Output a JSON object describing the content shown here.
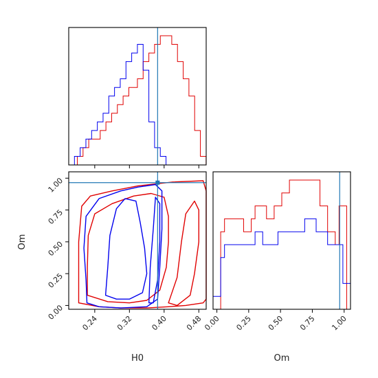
{
  "chart_data": {
    "type": "corner",
    "parameters": [
      "H0",
      "Om"
    ],
    "axis_labels": {
      "H0": "H0",
      "Om": "Om"
    },
    "ranges": {
      "H0": [
        0.18,
        0.497
      ],
      "Om": [
        -0.03,
        1.05
      ]
    },
    "ticks": {
      "H0": {
        "values": [
          0.24,
          0.32,
          0.4,
          0.48
        ],
        "labels": [
          "0.24",
          "0.32",
          "0.40",
          "0.48"
        ]
      },
      "Om": {
        "values": [
          0.0,
          0.25,
          0.5,
          0.75,
          1.0
        ],
        "labels": [
          "0.00",
          "0.25",
          "0.50",
          "0.75",
          "1.00"
        ]
      }
    },
    "truth": {
      "H0": 0.385,
      "Om": 0.965
    },
    "colors": {
      "red": "#e00000",
      "blue": "#0000ee",
      "truth": "#1f77b4"
    },
    "hist_H0": {
      "bins": [
        0.18,
        0.1866,
        0.1932,
        0.1998,
        0.2064,
        0.213,
        0.2196,
        0.2262,
        0.2328,
        0.2394,
        0.246,
        0.2526,
        0.2592,
        0.2658,
        0.2724,
        0.279,
        0.2856,
        0.2922,
        0.2988,
        0.3054,
        0.312,
        0.3186,
        0.3252,
        0.3318,
        0.3384,
        0.345,
        0.3516,
        0.3582,
        0.3648,
        0.3714,
        0.378,
        0.3846,
        0.3912,
        0.3978,
        0.4044,
        0.411,
        0.4176,
        0.4242,
        0.4308,
        0.4374,
        0.444,
        0.4506,
        0.4572,
        0.4638,
        0.4704,
        0.477,
        0.4836,
        0.4902,
        0.4968
      ],
      "series": [
        {
          "color": "red",
          "counts": [
            0,
            0,
            0,
            1,
            1,
            2,
            2,
            3,
            3,
            3,
            3,
            4,
            4,
            5,
            5,
            6,
            6,
            7,
            7,
            8,
            8,
            9,
            9,
            9,
            10,
            10,
            12,
            12,
            13,
            13,
            14,
            14,
            15,
            15,
            15,
            15,
            14,
            14,
            12,
            12,
            10,
            10,
            8,
            8,
            4,
            4,
            1,
            1
          ]
        },
        {
          "color": "blue",
          "counts": [
            0,
            0,
            1,
            1,
            2,
            2,
            3,
            3,
            4,
            4,
            5,
            5,
            6,
            6,
            8,
            8,
            9,
            9,
            10,
            10,
            12,
            12,
            13,
            13,
            14,
            14,
            11,
            11,
            5,
            5,
            2,
            2,
            1,
            1,
            0,
            0,
            0,
            0,
            0,
            0,
            0,
            0,
            0,
            0,
            0,
            0,
            0,
            0
          ]
        }
      ]
    },
    "hist_Om": {
      "bins": [
        -0.03,
        0.0,
        0.03,
        0.06,
        0.09,
        0.12,
        0.15,
        0.18,
        0.21,
        0.24,
        0.27,
        0.3,
        0.33,
        0.36,
        0.39,
        0.42,
        0.45,
        0.48,
        0.51,
        0.54,
        0.57,
        0.6,
        0.63,
        0.66,
        0.69,
        0.72,
        0.75,
        0.78,
        0.81,
        0.84,
        0.87,
        0.9,
        0.93,
        0.96,
        0.99,
        1.02,
        1.05
      ],
      "series": [
        {
          "color": "red",
          "counts": [
            0,
            0,
            6,
            7,
            7,
            7,
            7,
            7,
            6,
            6,
            7,
            8,
            8,
            8,
            7,
            7,
            8,
            8,
            9,
            9,
            10,
            10,
            10,
            10,
            10,
            10,
            10,
            10,
            8,
            8,
            6,
            6,
            5,
            8,
            8,
            0
          ]
        },
        {
          "color": "blue",
          "counts": [
            1,
            1,
            4,
            5,
            5,
            5,
            5,
            5,
            5,
            5,
            5,
            6,
            6,
            5,
            5,
            5,
            5,
            6,
            6,
            6,
            6,
            6,
            6,
            6,
            7,
            7,
            7,
            6,
            6,
            6,
            5,
            5,
            5,
            5,
            2,
            2
          ]
        }
      ]
    },
    "contours": [
      {
        "color": "red",
        "level": "outer",
        "points": [
          [
            0.203,
            0.02
          ],
          [
            0.203,
            0.25
          ],
          [
            0.203,
            0.5
          ],
          [
            0.21,
            0.78
          ],
          [
            0.23,
            0.86
          ],
          [
            0.28,
            0.9
          ],
          [
            0.34,
            0.94
          ],
          [
            0.42,
            0.97
          ],
          [
            0.49,
            0.98
          ],
          [
            0.497,
            0.9
          ],
          [
            0.497,
            0.6
          ],
          [
            0.497,
            0.25
          ],
          [
            0.497,
            0.05
          ],
          [
            0.49,
            0.02
          ],
          [
            0.45,
            0.0
          ],
          [
            0.41,
            -0.01
          ],
          [
            0.36,
            -0.02
          ],
          [
            0.3,
            -0.02
          ],
          [
            0.25,
            -0.01
          ],
          [
            0.203,
            0.02
          ]
        ]
      },
      {
        "color": "red",
        "level": "inner",
        "points": [
          [
            0.223,
            0.08
          ],
          [
            0.223,
            0.3
          ],
          [
            0.225,
            0.55
          ],
          [
            0.24,
            0.72
          ],
          [
            0.28,
            0.8
          ],
          [
            0.33,
            0.86
          ],
          [
            0.37,
            0.88
          ],
          [
            0.4,
            0.85
          ],
          [
            0.41,
            0.7
          ],
          [
            0.41,
            0.5
          ],
          [
            0.405,
            0.3
          ],
          [
            0.39,
            0.12
          ],
          [
            0.36,
            0.04
          ],
          [
            0.32,
            0.02
          ],
          [
            0.27,
            0.03
          ],
          [
            0.223,
            0.08
          ]
        ]
      },
      {
        "color": "red",
        "level": "inner2",
        "points": [
          [
            0.41,
            0.02
          ],
          [
            0.43,
            0.22
          ],
          [
            0.44,
            0.5
          ],
          [
            0.45,
            0.72
          ],
          [
            0.47,
            0.82
          ],
          [
            0.48,
            0.75
          ],
          [
            0.48,
            0.5
          ],
          [
            0.47,
            0.25
          ],
          [
            0.46,
            0.08
          ],
          [
            0.43,
            0.0
          ],
          [
            0.41,
            0.02
          ]
        ]
      },
      {
        "color": "blue",
        "level": "outer",
        "points": [
          [
            0.222,
            0.02
          ],
          [
            0.22,
            0.2
          ],
          [
            0.215,
            0.45
          ],
          [
            0.22,
            0.7
          ],
          [
            0.25,
            0.84
          ],
          [
            0.3,
            0.9
          ],
          [
            0.34,
            0.93
          ],
          [
            0.38,
            0.95
          ],
          [
            0.395,
            0.9
          ],
          [
            0.395,
            0.6
          ],
          [
            0.39,
            0.3
          ],
          [
            0.385,
            0.05
          ],
          [
            0.36,
            -0.01
          ],
          [
            0.3,
            -0.02
          ],
          [
            0.25,
            -0.01
          ],
          [
            0.222,
            0.02
          ]
        ]
      },
      {
        "color": "blue",
        "level": "inner",
        "points": [
          [
            0.265,
            0.08
          ],
          [
            0.27,
            0.3
          ],
          [
            0.275,
            0.55
          ],
          [
            0.29,
            0.76
          ],
          [
            0.31,
            0.84
          ],
          [
            0.335,
            0.82
          ],
          [
            0.345,
            0.65
          ],
          [
            0.355,
            0.45
          ],
          [
            0.36,
            0.25
          ],
          [
            0.35,
            0.1
          ],
          [
            0.32,
            0.05
          ],
          [
            0.29,
            0.05
          ],
          [
            0.265,
            0.08
          ]
        ]
      },
      {
        "color": "blue",
        "level": "inner2",
        "points": [
          [
            0.365,
            0.02
          ],
          [
            0.368,
            0.3
          ],
          [
            0.375,
            0.6
          ],
          [
            0.38,
            0.85
          ],
          [
            0.39,
            0.8
          ],
          [
            0.39,
            0.5
          ],
          [
            0.385,
            0.2
          ],
          [
            0.375,
            0.02
          ],
          [
            0.365,
            0.02
          ]
        ]
      }
    ]
  }
}
